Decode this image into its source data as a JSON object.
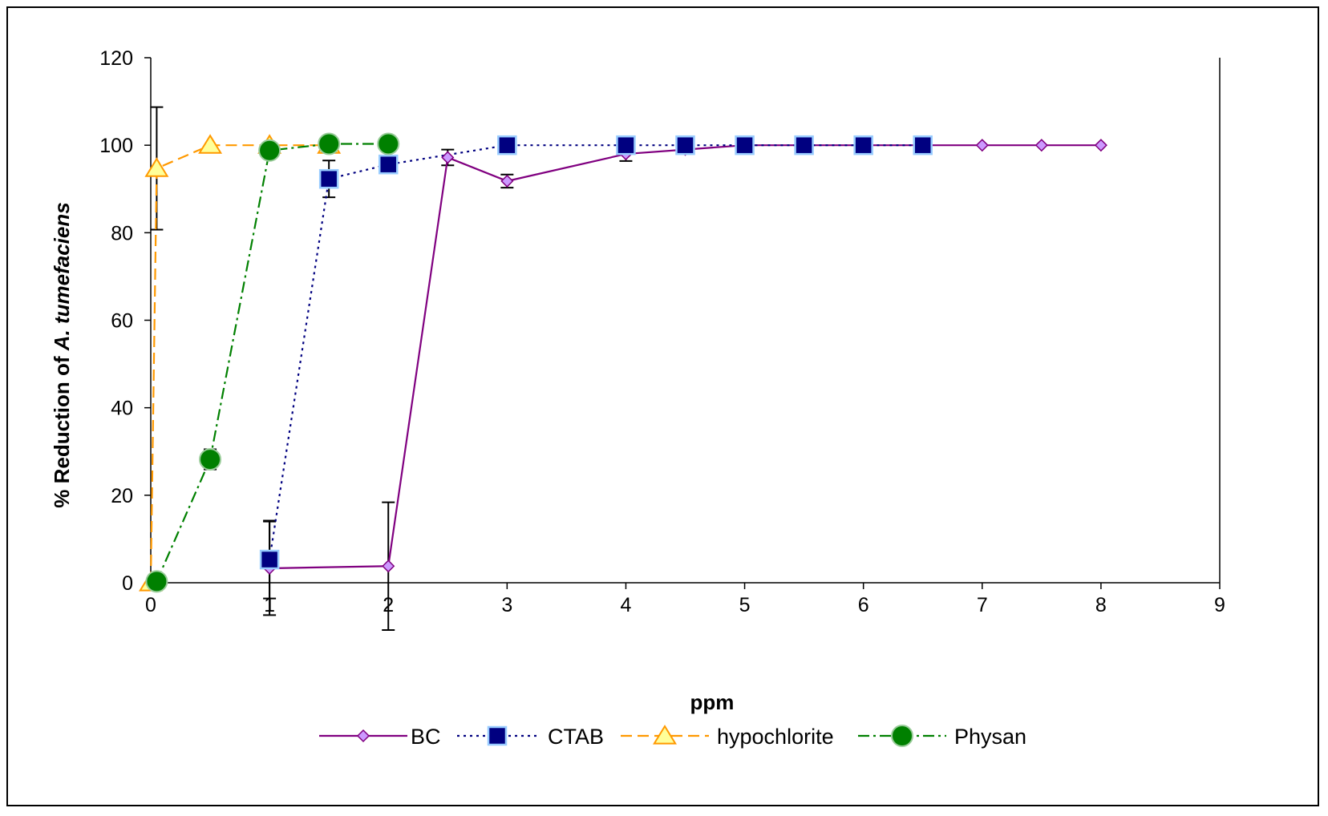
{
  "chart_data": {
    "type": "line",
    "xlabel": "ppm",
    "ylabel_prefix": "% Reduction of ",
    "ylabel_italic": "A. tumefaciens",
    "xlim": [
      0,
      9
    ],
    "ylim": [
      0,
      120
    ],
    "xticks": [
      0,
      1,
      2,
      3,
      4,
      5,
      6,
      7,
      8,
      9
    ],
    "yticks": [
      0,
      20,
      40,
      60,
      80,
      100,
      120
    ],
    "grid": false,
    "legend_position": "bottom",
    "series": [
      {
        "name": "BC",
        "color": "#800080",
        "marker": "diamond",
        "marker_fill": "#cc99ff",
        "dash": "solid",
        "x": [
          1,
          2,
          2.5,
          3,
          4,
          4.5,
          5,
          5.5,
          6,
          6.5,
          7,
          7.5,
          8
        ],
        "y": [
          3.3,
          3.8,
          97.2,
          91.8,
          98.0,
          99.0,
          100,
          100,
          100,
          100,
          100,
          100,
          100
        ],
        "err": [
          10.7,
          14.6,
          1.8,
          1.5,
          1.6,
          0,
          0,
          0,
          0,
          0,
          0,
          0,
          0
        ]
      },
      {
        "name": "CTAB",
        "color": "#000080",
        "marker": "square",
        "marker_fill": "#000080",
        "marker_edge": "#99ccff",
        "dash": "dotted",
        "x": [
          1,
          1.5,
          2,
          3,
          4,
          4.5,
          5,
          5.5,
          6,
          6.5
        ],
        "y": [
          5.3,
          92.3,
          95.6,
          100,
          100,
          100,
          100,
          100,
          100,
          100
        ],
        "err": [
          8.9,
          4.2,
          0,
          0,
          0,
          0,
          0,
          0,
          0,
          0
        ]
      },
      {
        "name": "hypochlorite",
        "color": "#ff9900",
        "marker": "triangle",
        "marker_fill": "#ffff99",
        "dash": "dashed",
        "x": [
          0,
          0.05,
          0.5,
          1,
          1.5
        ],
        "y": [
          0,
          94.7,
          100,
          100,
          100
        ],
        "err": [
          0,
          14.0,
          0,
          0,
          0
        ]
      },
      {
        "name": "Physan",
        "color": "#008000",
        "marker": "circle",
        "marker_fill": "#008000",
        "marker_edge": "#99cc99",
        "dash": "dashdot",
        "x": [
          0.05,
          0.5,
          1,
          1.5,
          2
        ],
        "y": [
          0.3,
          28.2,
          98.8,
          100.3,
          100.3
        ],
        "err": [
          0,
          2.3,
          0,
          0,
          0
        ]
      }
    ]
  }
}
